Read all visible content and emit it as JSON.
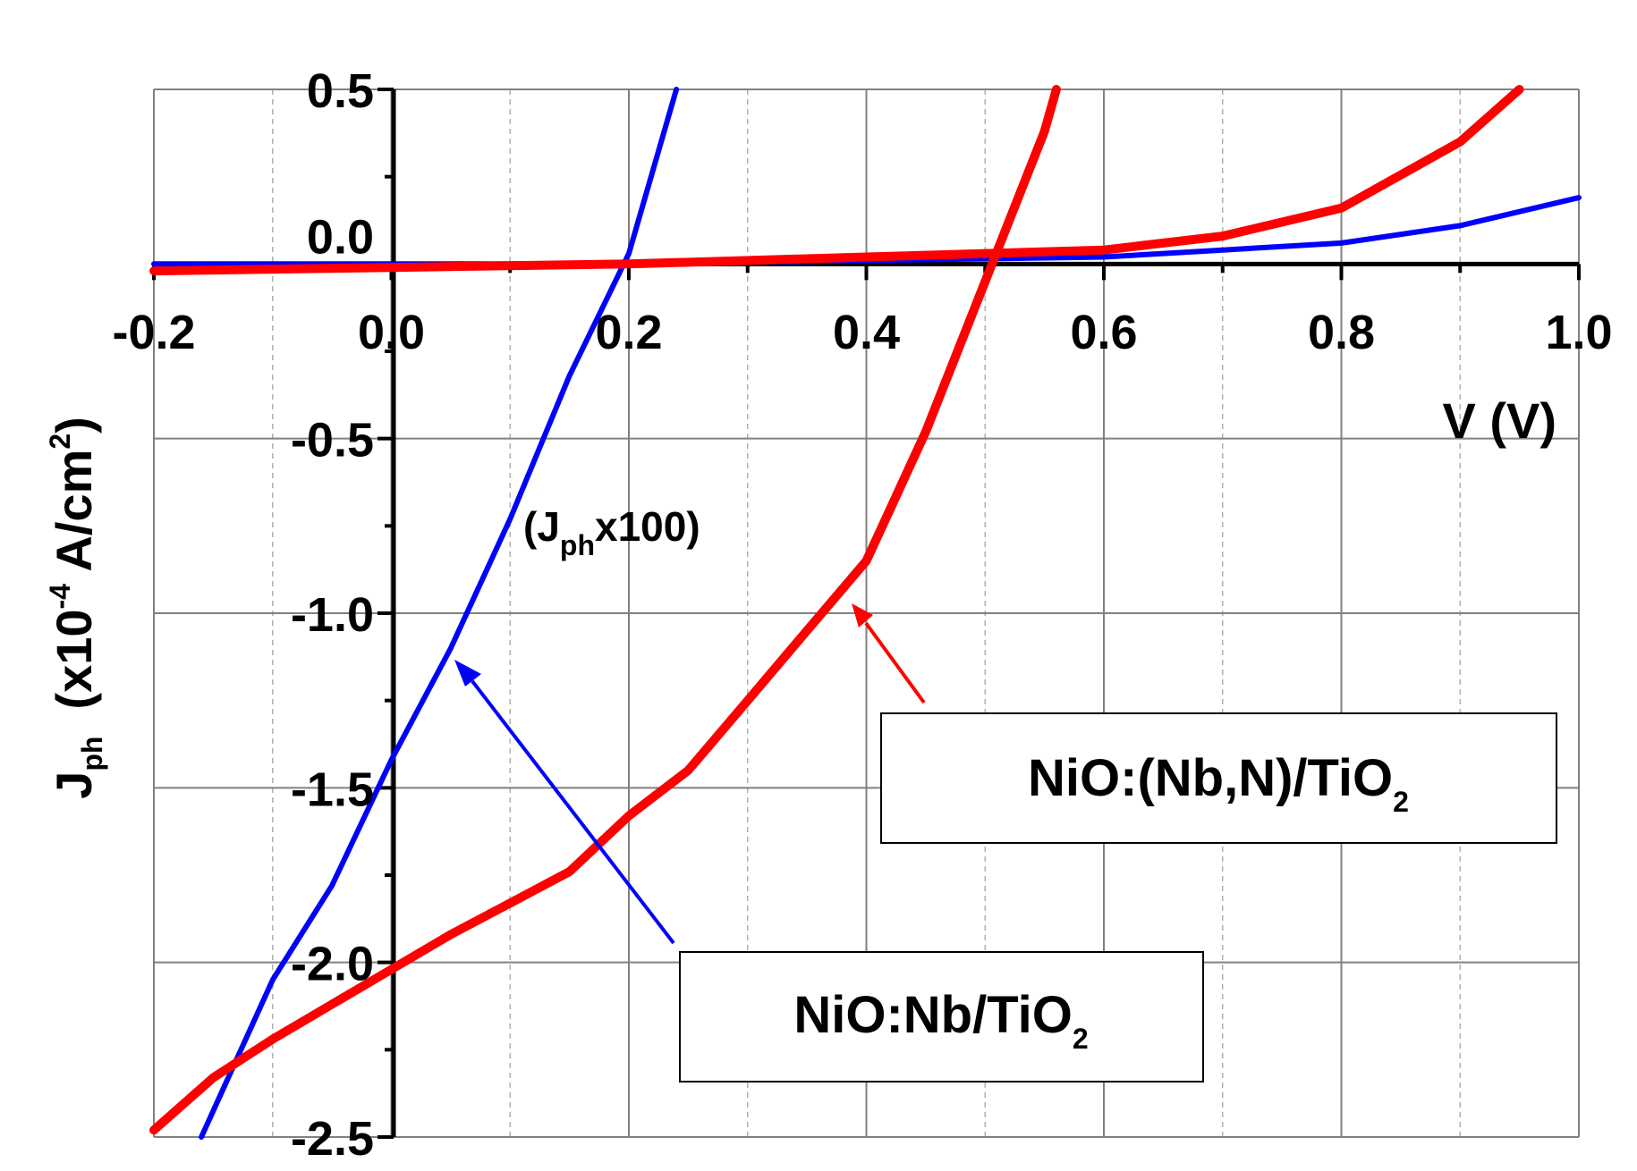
{
  "chart_data": {
    "type": "line",
    "xlabel": "V (V)",
    "ylabel": {
      "main": "J",
      "main_sub": "ph",
      "unit_prefix": "(x10",
      "unit_exp": "-4",
      "unit_mid": " A/cm",
      "unit_exp2": "2",
      "unit_suffix": ")"
    },
    "xlim": [
      -0.2,
      1.0
    ],
    "ylim": [
      -2.5,
      0.5
    ],
    "x_ticks": [
      "-0.2",
      "0.0",
      "0.2",
      "0.4",
      "0.6",
      "0.8",
      "1.0"
    ],
    "y_ticks": [
      "0.5",
      "0.0",
      "-0.5",
      "-1.0",
      "-1.5",
      "-2.0",
      "-2.5"
    ],
    "grid": true,
    "series": [
      {
        "name": "NiO:Nb/TiO2",
        "color": "#0000ff",
        "segments": [
          {
            "scale_note": "",
            "points": [
              [
                -0.2,
                0.0
              ],
              [
                0.0,
                0.0
              ],
              [
                0.2,
                0.0
              ],
              [
                0.4,
                0.01
              ],
              [
                0.6,
                0.02
              ],
              [
                0.7,
                0.04
              ],
              [
                0.8,
                0.06
              ],
              [
                0.9,
                0.11
              ],
              [
                1.0,
                0.19
              ]
            ]
          },
          {
            "scale_note": "(Jphx100)",
            "points": [
              [
                -0.16,
                -2.5
              ],
              [
                -0.1,
                -2.05
              ],
              [
                -0.05,
                -1.78
              ],
              [
                0.0,
                -1.42
              ],
              [
                0.05,
                -1.1
              ],
              [
                0.1,
                -0.73
              ],
              [
                0.15,
                -0.32
              ],
              [
                0.2,
                0.03
              ],
              [
                0.24,
                0.5
              ]
            ]
          }
        ]
      },
      {
        "name": "NiO:(Nb,N)/TiO2",
        "color": "#ff0000",
        "points": [
          [
            -0.2,
            -2.48
          ],
          [
            -0.15,
            -2.33
          ],
          [
            -0.1,
            -2.22
          ],
          [
            -0.05,
            -2.12
          ],
          [
            0.0,
            -2.02
          ],
          [
            0.05,
            -1.92
          ],
          [
            0.1,
            -1.83
          ],
          [
            0.15,
            -1.74
          ],
          [
            0.2,
            -1.58
          ],
          [
            0.25,
            -1.45
          ],
          [
            0.3,
            -1.25
          ],
          [
            0.35,
            -1.05
          ],
          [
            0.4,
            -0.85
          ],
          [
            0.45,
            -0.48
          ],
          [
            0.5,
            -0.05
          ],
          [
            0.55,
            0.38
          ],
          [
            0.56,
            0.5
          ]
        ],
        "tail": [
          [
            -0.2,
            -0.02
          ],
          [
            0.0,
            -0.01
          ],
          [
            0.2,
            0.0
          ],
          [
            0.4,
            0.02
          ],
          [
            0.5,
            0.03
          ],
          [
            0.6,
            0.04
          ],
          [
            0.7,
            0.08
          ],
          [
            0.8,
            0.16
          ],
          [
            0.9,
            0.35
          ],
          [
            0.95,
            0.5
          ]
        ]
      }
    ],
    "annotations": [
      {
        "name": "scale-note",
        "text_main": "(J",
        "text_sub": "ph",
        "text_tail": "x100)"
      }
    ],
    "legend": [
      {
        "key": "red",
        "text_main": "NiO:(Nb,N)/TiO",
        "text_sub": "2"
      },
      {
        "key": "blue",
        "text_main": "NiO:Nb/TiO",
        "text_sub": "2"
      }
    ]
  }
}
